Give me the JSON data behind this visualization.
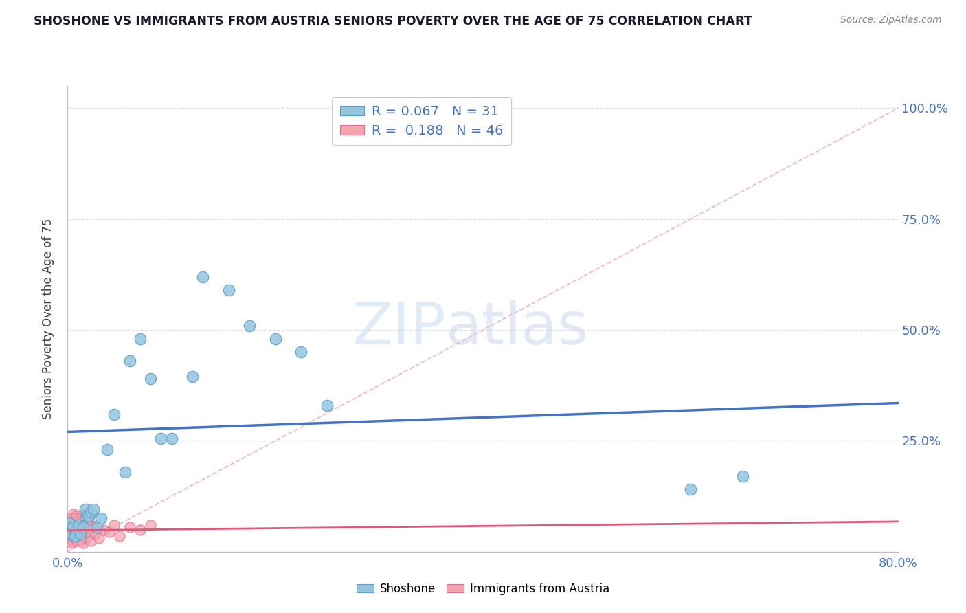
{
  "title": "SHOSHONE VS IMMIGRANTS FROM AUSTRIA SENIORS POVERTY OVER THE AGE OF 75 CORRELATION CHART",
  "source_text": "Source: ZipAtlas.com",
  "ylabel": "Seniors Poverty Over the Age of 75",
  "xlim": [
    0.0,
    0.8
  ],
  "ylim": [
    0.0,
    1.05
  ],
  "shoshone_color": "#92C5DE",
  "shoshone_edge": "#5A9EC9",
  "austria_color": "#F4A5B0",
  "austria_edge": "#D87090",
  "trend_blue": "#4472C4",
  "trend_pink": "#E05878",
  "ref_line_color": "#F4A5B0",
  "grid_color": "#DDDDDD",
  "R_shoshone": "0.067",
  "N_shoshone": "31",
  "R_austria": "0.188",
  "N_austria": "46",
  "shoshone_x": [
    0.002,
    0.003,
    0.005,
    0.007,
    0.01,
    0.012,
    0.015,
    0.017,
    0.018,
    0.02,
    0.022,
    0.025,
    0.028,
    0.032,
    0.038,
    0.045,
    0.055,
    0.06,
    0.07,
    0.08,
    0.09,
    0.1,
    0.12,
    0.13,
    0.155,
    0.175,
    0.2,
    0.225,
    0.25,
    0.6,
    0.65
  ],
  "shoshone_y": [
    0.065,
    0.04,
    0.055,
    0.035,
    0.06,
    0.04,
    0.055,
    0.095,
    0.08,
    0.08,
    0.09,
    0.095,
    0.055,
    0.075,
    0.23,
    0.31,
    0.18,
    0.43,
    0.48,
    0.39,
    0.255,
    0.255,
    0.395,
    0.62,
    0.59,
    0.51,
    0.48,
    0.45,
    0.33,
    0.14,
    0.17
  ],
  "austria_x": [
    0.0,
    0.001,
    0.001,
    0.002,
    0.002,
    0.003,
    0.003,
    0.004,
    0.004,
    0.005,
    0.005,
    0.006,
    0.006,
    0.007,
    0.007,
    0.008,
    0.008,
    0.009,
    0.009,
    0.01,
    0.01,
    0.011,
    0.012,
    0.012,
    0.013,
    0.014,
    0.015,
    0.015,
    0.016,
    0.017,
    0.018,
    0.019,
    0.02,
    0.021,
    0.022,
    0.023,
    0.025,
    0.027,
    0.03,
    0.035,
    0.04,
    0.045,
    0.05,
    0.06,
    0.07,
    0.08
  ],
  "austria_y": [
    0.05,
    0.025,
    0.055,
    0.03,
    0.065,
    0.02,
    0.06,
    0.04,
    0.075,
    0.025,
    0.07,
    0.045,
    0.085,
    0.03,
    0.065,
    0.04,
    0.08,
    0.025,
    0.06,
    0.035,
    0.075,
    0.05,
    0.025,
    0.07,
    0.045,
    0.085,
    0.02,
    0.06,
    0.04,
    0.075,
    0.03,
    0.065,
    0.045,
    0.08,
    0.025,
    0.06,
    0.055,
    0.04,
    0.03,
    0.05,
    0.045,
    0.06,
    0.035,
    0.055,
    0.05,
    0.06
  ]
}
